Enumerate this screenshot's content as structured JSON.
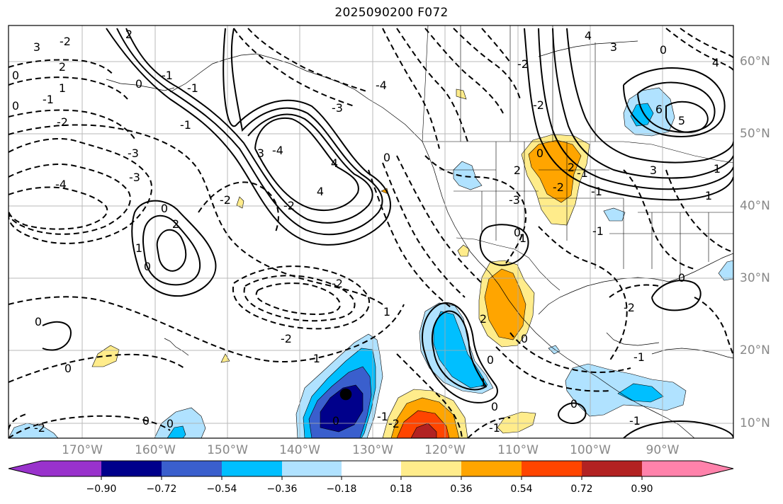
{
  "title": "2025090200 F072",
  "lon_labels": [
    "170°W",
    "160°W",
    "150°W",
    "140°W",
    "130°W",
    "120°W",
    "110°W",
    "100°W",
    "90°W"
  ],
  "lat_labels": [
    "60°N",
    "50°N",
    "40°N",
    "30°N",
    "20°N",
    "10°N"
  ],
  "colorbar": {
    "tick_labels": [
      "−0.90",
      "−0.72",
      "−0.54",
      "−0.36",
      "−0.18",
      "0.18",
      "0.36",
      "0.54",
      "0.72",
      "0.90"
    ],
    "colors": [
      "#9932cc",
      "#00008b",
      "#3a5fcd",
      "#00bfff",
      "#b0e2ff",
      "#ffffff",
      "#ffec8b",
      "#ffa500",
      "#ff4500",
      "#b22222",
      "#ff82ab"
    ]
  },
  "contour_labels": [
    "3",
    "2",
    "1",
    "0",
    "-1",
    "-2",
    "-3",
    "-4",
    "2",
    "1",
    "0",
    "-1",
    "-2",
    "-3",
    "3",
    "-4",
    "4",
    "4",
    "-2",
    "-1",
    "0",
    "-2",
    "-1",
    "0",
    "-2",
    "-3",
    "-4",
    "-2",
    "2",
    "0",
    "1",
    "2",
    "4",
    "3",
    "-2",
    "-2",
    "0",
    "-1",
    "0",
    "0",
    "-2",
    "1",
    "1",
    "-1",
    "0",
    "0",
    "-1",
    "3",
    "6",
    "5",
    "4",
    "0",
    "1",
    "2",
    "-2",
    "-1",
    "-3",
    "0",
    "2",
    "-1",
    "0",
    "0",
    "-2",
    "-1",
    "0",
    "-1",
    "0",
    "0",
    "1",
    "0",
    "-2",
    "0",
    "-1"
  ]
}
